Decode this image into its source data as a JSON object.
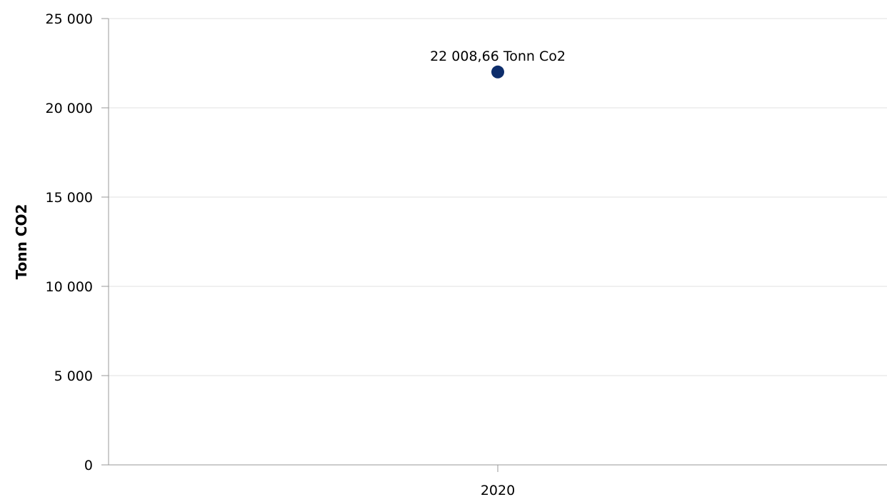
{
  "chart_data": {
    "type": "scatter",
    "categories": [
      "2020"
    ],
    "series": [
      {
        "values": [
          22008.66
        ],
        "data_labels": [
          "22 008,66 Tonn Co2"
        ]
      }
    ],
    "ylabel": "Tonn CO2",
    "xlabel": "",
    "ylim": [
      0,
      25000
    ],
    "yticks": [
      0,
      5000,
      10000,
      15000,
      20000,
      25000
    ],
    "ytick_labels": [
      "0",
      "5 000",
      "10 000",
      "15 000",
      "20 000",
      "25 000"
    ],
    "grid": true,
    "legend": "none",
    "colors": {
      "point": "#0d2d6b",
      "grid": "#e0e0e0",
      "axis": "#999999"
    }
  }
}
